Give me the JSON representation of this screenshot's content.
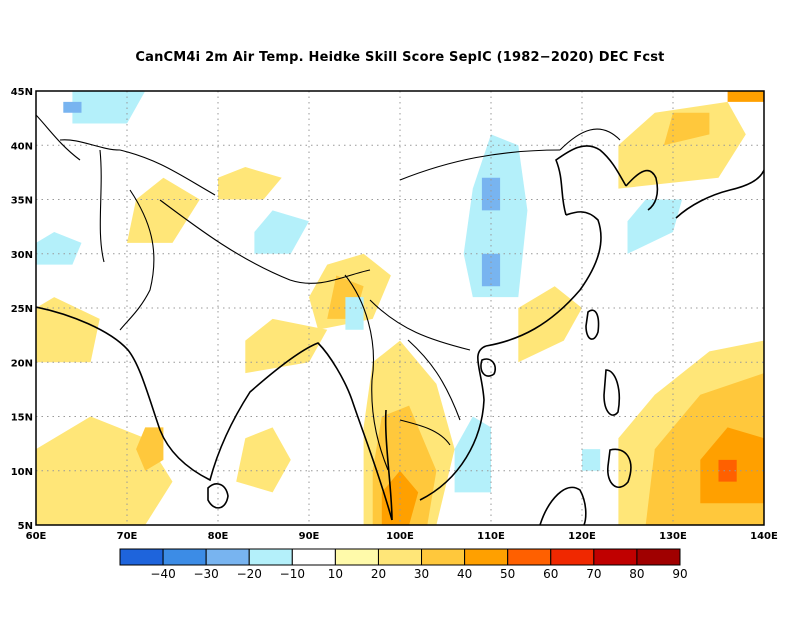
{
  "title": "CanCM4i  2m Air Temp. Heidke Skill Score SepIC (1982−2020) DEC Fcst",
  "map": {
    "lon_range": [
      60,
      140
    ],
    "lat_range": [
      5,
      45
    ],
    "grid": true,
    "lon_ticks": [
      {
        "value": 60,
        "label": "60E"
      },
      {
        "value": 70,
        "label": "70E"
      },
      {
        "value": 80,
        "label": "80E"
      },
      {
        "value": 90,
        "label": "90E"
      },
      {
        "value": 100,
        "label": "100E"
      },
      {
        "value": 110,
        "label": "110E"
      },
      {
        "value": 120,
        "label": "120E"
      },
      {
        "value": 130,
        "label": "130E"
      },
      {
        "value": 140,
        "label": "140E"
      }
    ],
    "lat_ticks": [
      {
        "value": 5,
        "label": "5N"
      },
      {
        "value": 10,
        "label": "10N"
      },
      {
        "value": 15,
        "label": "15N"
      },
      {
        "value": 20,
        "label": "20N"
      },
      {
        "value": 25,
        "label": "25N"
      },
      {
        "value": 30,
        "label": "30N"
      },
      {
        "value": 35,
        "label": "35N"
      },
      {
        "value": 40,
        "label": "40N"
      },
      {
        "value": 45,
        "label": "45N"
      }
    ]
  },
  "colorbar": {
    "colors": [
      "#1e64dc",
      "#3c8ce6",
      "#78b4f0",
      "#b4f0fa",
      "#ffffff",
      "#fffaaa",
      "#ffe678",
      "#ffc83c",
      "#ffa000",
      "#ff6000",
      "#f02800",
      "#c00000",
      "#a00000"
    ],
    "labels": [
      "−40",
      "−30",
      "−20",
      "−10",
      "10",
      "20",
      "30",
      "40",
      "50",
      "60",
      "70",
      "80",
      "90"
    ]
  },
  "anomaly_regions": [
    {
      "level": 30,
      "points": [
        [
          60,
          5
        ],
        [
          65,
          5
        ],
        [
          67,
          7
        ],
        [
          65,
          10
        ],
        [
          62,
          11
        ],
        [
          60,
          10
        ]
      ]
    },
    {
      "level": 50,
      "points": [
        [
          60,
          5
        ],
        [
          62,
          5
        ],
        [
          63,
          7
        ],
        [
          61,
          8
        ],
        [
          60,
          7
        ]
      ]
    },
    {
      "level": 20,
      "points": [
        [
          60,
          5
        ],
        [
          72,
          5
        ],
        [
          75,
          9
        ],
        [
          72,
          13
        ],
        [
          66,
          15
        ],
        [
          62,
          13
        ],
        [
          60,
          12
        ]
      ]
    },
    {
      "level": 30,
      "points": [
        [
          72,
          10
        ],
        [
          74,
          11
        ],
        [
          74,
          14
        ],
        [
          72,
          14
        ],
        [
          71,
          12
        ]
      ]
    },
    {
      "level": 20,
      "points": [
        [
          82,
          9
        ],
        [
          86,
          8
        ],
        [
          88,
          11
        ],
        [
          86,
          14
        ],
        [
          83,
          13
        ]
      ]
    },
    {
      "level": 20,
      "points": [
        [
          124,
          5
        ],
        [
          140,
          5
        ],
        [
          140,
          22
        ],
        [
          134,
          21
        ],
        [
          128,
          17
        ],
        [
          124,
          13
        ]
      ]
    },
    {
      "level": 30,
      "points": [
        [
          127,
          5
        ],
        [
          140,
          5
        ],
        [
          140,
          19
        ],
        [
          133,
          17
        ],
        [
          128,
          12
        ]
      ]
    },
    {
      "level": 40,
      "points": [
        [
          133,
          7
        ],
        [
          140,
          7
        ],
        [
          140,
          13
        ],
        [
          136,
          14
        ],
        [
          133,
          11
        ]
      ]
    },
    {
      "level": 50,
      "points": [
        [
          135,
          9
        ],
        [
          137,
          9
        ],
        [
          137,
          11
        ],
        [
          135,
          11
        ]
      ]
    },
    {
      "level": 20,
      "points": [
        [
          96,
          5
        ],
        [
          104,
          5
        ],
        [
          106,
          12
        ],
        [
          104,
          18
        ],
        [
          100,
          22
        ],
        [
          97,
          20
        ],
        [
          96,
          14
        ]
      ]
    },
    {
      "level": 30,
      "points": [
        [
          97,
          5
        ],
        [
          103,
          5
        ],
        [
          104,
          10
        ],
        [
          101,
          16
        ],
        [
          98,
          15
        ],
        [
          97,
          10
        ]
      ]
    },
    {
      "level": 40,
      "points": [
        [
          98,
          5
        ],
        [
          101,
          5
        ],
        [
          102,
          8
        ],
        [
          100,
          10
        ],
        [
          98,
          8
        ]
      ]
    },
    {
      "level": 20,
      "points": [
        [
          113,
          20
        ],
        [
          118,
          22
        ],
        [
          120,
          25
        ],
        [
          117,
          27
        ],
        [
          113,
          25
        ]
      ]
    },
    {
      "level": 20,
      "points": [
        [
          91,
          23
        ],
        [
          97,
          24
        ],
        [
          99,
          28
        ],
        [
          96,
          30
        ],
        [
          92,
          29
        ],
        [
          90,
          26
        ]
      ]
    },
    {
      "level": 30,
      "points": [
        [
          92,
          24
        ],
        [
          95,
          24
        ],
        [
          96,
          27
        ],
        [
          93,
          28
        ]
      ]
    },
    {
      "level": 20,
      "points": [
        [
          70,
          31
        ],
        [
          75,
          31
        ],
        [
          78,
          35
        ],
        [
          74,
          37
        ],
        [
          71,
          35
        ]
      ]
    },
    {
      "level": 20,
      "points": [
        [
          124,
          36
        ],
        [
          135,
          37
        ],
        [
          138,
          41
        ],
        [
          136,
          44
        ],
        [
          128,
          43
        ],
        [
          124,
          40
        ]
      ]
    },
    {
      "level": 30,
      "points": [
        [
          129,
          40
        ],
        [
          134,
          41
        ],
        [
          134,
          43
        ],
        [
          130,
          43
        ]
      ]
    },
    {
      "level": 40,
      "points": [
        [
          136,
          44
        ],
        [
          140,
          44
        ],
        [
          140,
          45
        ],
        [
          136,
          45
        ]
      ]
    },
    {
      "level": 20,
      "points": [
        [
          80,
          35
        ],
        [
          85,
          35
        ],
        [
          87,
          37
        ],
        [
          83,
          38
        ],
        [
          80,
          37
        ]
      ]
    },
    {
      "level": 20,
      "points": [
        [
          60,
          20
        ],
        [
          66,
          20
        ],
        [
          67,
          24
        ],
        [
          62,
          26
        ],
        [
          60,
          25
        ]
      ]
    },
    {
      "level": 20,
      "points": [
        [
          83,
          19
        ],
        [
          90,
          20
        ],
        [
          92,
          23
        ],
        [
          86,
          24
        ],
        [
          83,
          22
        ]
      ]
    },
    {
      "level": -10,
      "points": [
        [
          106,
          8
        ],
        [
          110,
          8
        ],
        [
          110,
          14
        ],
        [
          108,
          15
        ],
        [
          106,
          12
        ]
      ]
    },
    {
      "level": -10,
      "points": [
        [
          108,
          26
        ],
        [
          113,
          26
        ],
        [
          114,
          34
        ],
        [
          113,
          40
        ],
        [
          110,
          41
        ],
        [
          108,
          36
        ],
        [
          107,
          30
        ]
      ]
    },
    {
      "level": -20,
      "points": [
        [
          109,
          34
        ],
        [
          111,
          34
        ],
        [
          111,
          37
        ],
        [
          109,
          37
        ]
      ]
    },
    {
      "level": -20,
      "points": [
        [
          109,
          27
        ],
        [
          111,
          27
        ],
        [
          111,
          30
        ],
        [
          109,
          30
        ]
      ]
    },
    {
      "level": -10,
      "points": [
        [
          84,
          30
        ],
        [
          88,
          30
        ],
        [
          90,
          33
        ],
        [
          86,
          34
        ],
        [
          84,
          32
        ]
      ]
    },
    {
      "level": -10,
      "points": [
        [
          94,
          23
        ],
        [
          96,
          23
        ],
        [
          96,
          26
        ],
        [
          94,
          26
        ]
      ]
    },
    {
      "level": -10,
      "points": [
        [
          64,
          42
        ],
        [
          70,
          42
        ],
        [
          72,
          45
        ],
        [
          64,
          45
        ]
      ]
    },
    {
      "level": -10,
      "points": [
        [
          60,
          29
        ],
        [
          64,
          29
        ],
        [
          65,
          31
        ],
        [
          62,
          32
        ],
        [
          60,
          31
        ]
      ]
    },
    {
      "level": -10,
      "points": [
        [
          125,
          30
        ],
        [
          130,
          32
        ],
        [
          131,
          35
        ],
        [
          127,
          35
        ],
        [
          125,
          33
        ]
      ]
    },
    {
      "level": -10,
      "points": [
        [
          120,
          10
        ],
        [
          122,
          10
        ],
        [
          122,
          12
        ],
        [
          120,
          12
        ]
      ]
    },
    {
      "level": -20,
      "points": [
        [
          63,
          43
        ],
        [
          65,
          43
        ],
        [
          65,
          44
        ],
        [
          63,
          44
        ]
      ]
    }
  ]
}
